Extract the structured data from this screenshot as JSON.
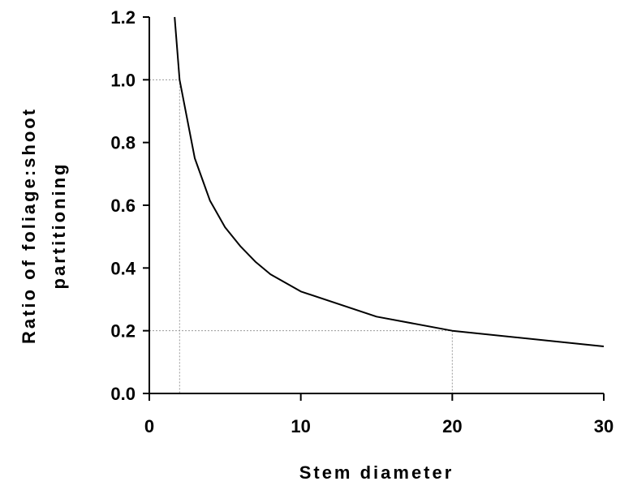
{
  "chart_data": {
    "type": "line",
    "title": "",
    "xlabel": "Stem diameter",
    "ylabel_lines": [
      "Ratio of foliage:shoot",
      "partitioning"
    ],
    "xlim": [
      0,
      30
    ],
    "ylim": [
      0,
      1.2
    ],
    "x_ticks": [
      0,
      10,
      20,
      30
    ],
    "y_ticks": [
      0.0,
      0.2,
      0.4,
      0.6,
      0.8,
      1.0,
      1.2
    ],
    "x_tick_labels": [
      "0",
      "10",
      "20",
      "30"
    ],
    "y_tick_labels": [
      "0.0",
      "0.2",
      "0.4",
      "0.6",
      "0.8",
      "1.0",
      "1.2"
    ],
    "grid": false,
    "series": [
      {
        "color": "#000000",
        "x": [
          1.67,
          2,
          3,
          4,
          5,
          6,
          7,
          8,
          10,
          15,
          20,
          30
        ],
        "y": [
          1.2,
          1.0,
          0.75,
          0.615,
          0.53,
          0.47,
          0.42,
          0.38,
          0.325,
          0.245,
          0.2,
          0.15
        ]
      }
    ],
    "reference_lines": [
      {
        "x": 2,
        "y": 1.0,
        "color": "#999999"
      },
      {
        "x": 20,
        "y": 0.2,
        "color": "#999999"
      }
    ]
  }
}
